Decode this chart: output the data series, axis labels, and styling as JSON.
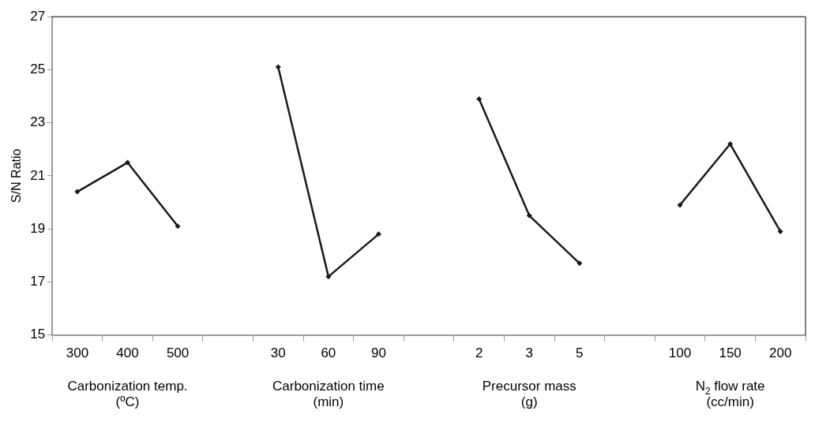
{
  "chart_data": {
    "type": "line",
    "ylabel": "S/N Ratio",
    "categories": [
      "300",
      "400",
      "500",
      null,
      "30",
      "60",
      "90",
      null,
      "2",
      "3",
      "5",
      null,
      "100",
      "150",
      "200"
    ],
    "series": [
      {
        "color": "#1a1a1a",
        "values": [
          20.4,
          21.5,
          19.1,
          null,
          null,
          null,
          null,
          null,
          null,
          null,
          null,
          null,
          null,
          null,
          null
        ]
      },
      {
        "color": "#1a1a1a",
        "values": [
          null,
          null,
          null,
          null,
          25.1,
          17.2,
          18.8,
          null,
          null,
          null,
          null,
          null,
          null,
          null,
          null
        ]
      },
      {
        "color": "#1a1a1a",
        "values": [
          null,
          null,
          null,
          null,
          null,
          null,
          null,
          null,
          23.9,
          19.5,
          17.7,
          null,
          null,
          null,
          null
        ]
      },
      {
        "color": "#1a1a1a",
        "values": [
          null,
          null,
          null,
          null,
          null,
          null,
          null,
          null,
          null,
          null,
          null,
          null,
          19.9,
          22.2,
          18.9
        ]
      }
    ],
    "ylim": [
      15,
      27
    ],
    "yticks": [
      15,
      17,
      19,
      21,
      23,
      25,
      27
    ],
    "grid": false,
    "legend": false,
    "marker": "diamond",
    "line_style": "solid",
    "annotations": [
      "Carbonization temp.\n(ºC)",
      "Carbonization time\n(min)",
      "Precursor mass\n(g)",
      "N$_{2}$ flow rate\n(cc/min)"
    ]
  }
}
